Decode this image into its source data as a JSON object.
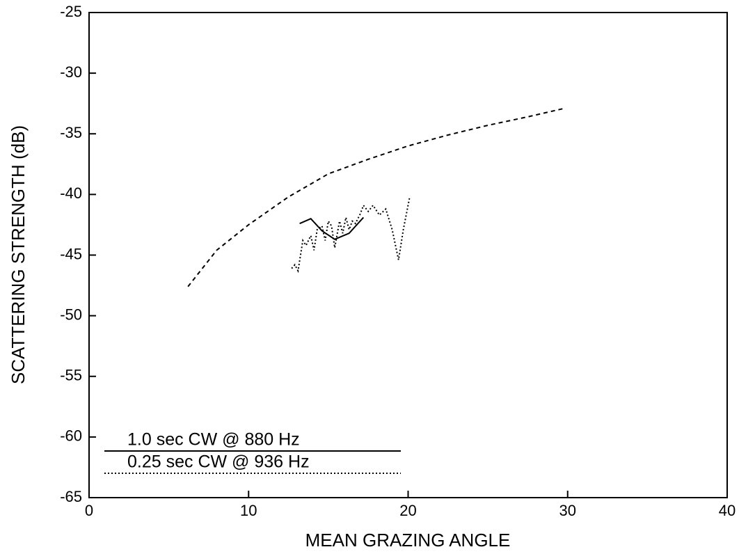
{
  "chart_data": {
    "type": "line",
    "xlabel": "MEAN GRAZING ANGLE",
    "ylabel": "SCATTERING STRENGTH (dB)",
    "xlim": [
      0,
      40
    ],
    "xticks": [
      0,
      10,
      20,
      30,
      40
    ],
    "ylim": [
      -65,
      -25
    ],
    "yticks": [
      -25,
      -30,
      -35,
      -40,
      -45,
      -50,
      -55,
      -60,
      -65
    ],
    "legend": "lower left",
    "series": [
      {
        "color": "#000000",
        "linestyle": "dashed",
        "x": [
          6.2,
          8,
          10,
          12.5,
          15,
          17.5,
          20,
          22.5,
          25,
          27.5,
          29.8
        ],
        "values": [
          -47.6,
          -44.6,
          -42.5,
          -40.2,
          -38.3,
          -37.1,
          -36.0,
          -35.1,
          -34.3,
          -33.6,
          -32.9
        ]
      },
      {
        "name": "1.0 sec CW @ 880 Hz",
        "color": "#000000",
        "linestyle": "solid",
        "x": [
          13.2,
          13.9,
          14.6,
          15.4,
          16.3,
          17.2
        ],
        "values": [
          -42.4,
          -42.0,
          -43.0,
          -43.7,
          -43.2,
          -41.9
        ]
      },
      {
        "name": "0.25 sec CW @ 936 Hz",
        "color": "#000000",
        "linestyle": "dotted",
        "x": [
          12.7,
          12.9,
          13.1,
          13.4,
          13.6,
          13.9,
          14.1,
          14.3,
          14.6,
          14.8,
          15.0,
          15.2,
          15.4,
          15.7,
          15.9,
          16.1,
          16.3,
          16.5,
          16.7,
          17.0,
          17.2,
          17.5,
          17.8,
          18.2,
          18.6,
          19.0,
          19.4,
          19.7,
          20.1
        ],
        "values": [
          -46.1,
          -45.8,
          -46.3,
          -43.8,
          -44.2,
          -43.4,
          -44.6,
          -42.9,
          -42.6,
          -43.8,
          -42.2,
          -42.6,
          -44.4,
          -42.2,
          -43.2,
          -41.9,
          -42.9,
          -42.2,
          -42.4,
          -41.6,
          -40.9,
          -41.4,
          -40.9,
          -41.7,
          -41.2,
          -42.9,
          -45.4,
          -42.9,
          -40.2
        ]
      }
    ]
  }
}
